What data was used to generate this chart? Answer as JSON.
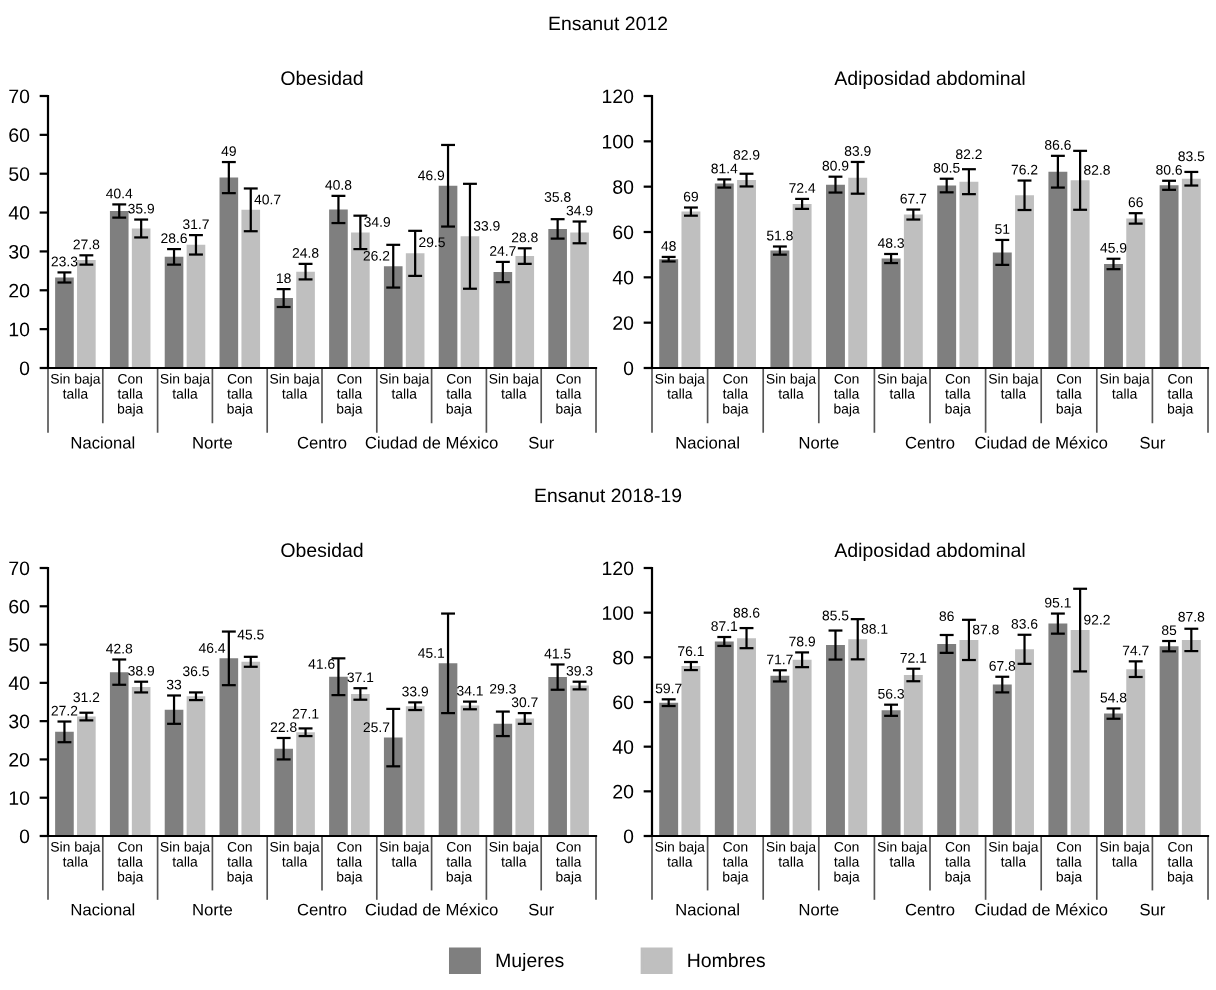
{
  "chart_data": [
    {
      "type": "bar",
      "title": "Obesidad",
      "annotations": [
        "Ensanut 2012",
        "Nacional",
        "Norte",
        "Centro",
        "Ciudad de México",
        "Sur"
      ],
      "categories": [
        "Sin baja\ntalla",
        "Con\ntalla\nbaja",
        "Sin baja\ntalla",
        "Con\ntalla\nbaja",
        "Sin baja\ntalla",
        "Con\ntalla\nbaja",
        "Sin baja\ntalla",
        "Con\ntalla\nbaja",
        "Sin baja\ntalla",
        "Con\ntalla\nbaja"
      ],
      "series": [
        {
          "name": "Mujeres",
          "color": "#7f7f7f",
          "values": [
            23.3,
            40.4,
            28.6,
            49,
            18,
            40.8,
            26.2,
            46.9,
            24.7,
            35.8
          ],
          "errors": [
            1.3,
            1.7,
            2.0,
            4,
            2.3,
            3.5,
            5.5,
            10.5,
            2.6,
            2.5
          ]
        },
        {
          "name": "Hombres",
          "color": "#bfbfbf",
          "values": [
            27.8,
            35.9,
            31.7,
            40.7,
            24.8,
            34.9,
            29.5,
            33.9,
            28.8,
            34.9
          ],
          "errors": [
            1.2,
            2.3,
            2.5,
            5.5,
            2,
            4.3,
            5.8,
            13.5,
            2,
            2.8
          ]
        }
      ],
      "ylim": [
        0,
        70
      ],
      "yticks": [
        0,
        10,
        20,
        30,
        40,
        50,
        60,
        70
      ],
      "data_labels": true,
      "grid": false,
      "legend": "bottom"
    },
    {
      "type": "bar",
      "title": "Adiposidad abdominal",
      "annotations": [
        "Nacional",
        "Norte",
        "Centro",
        "Ciudad de México",
        "Sur"
      ],
      "categories": [
        "Sin baja\ntalla",
        "Con\ntalla\nbaja",
        "Sin baja\ntalla",
        "Con\ntalla\nbaja",
        "Sin baja\ntalla",
        "Con\ntalla\nbaja",
        "Sin baja\ntalla",
        "Con\ntalla\nbaja",
        "Sin baja\ntalla",
        "Con\ntalla\nbaja"
      ],
      "series": [
        {
          "name": "Mujeres",
          "color": "#7f7f7f",
          "values": [
            48,
            81.4,
            51.8,
            80.9,
            48.3,
            80.5,
            51,
            86.6,
            45.9,
            80.6
          ],
          "errors": [
            1,
            1.8,
            1.8,
            3.5,
            2,
            3,
            5.5,
            7,
            2.3,
            2
          ]
        },
        {
          "name": "Hombres",
          "color": "#bfbfbf",
          "values": [
            69,
            82.9,
            72.4,
            83.9,
            67.7,
            82.2,
            76.2,
            82.8,
            66,
            83.5
          ],
          "errors": [
            1.8,
            2.8,
            2.2,
            7,
            2.2,
            5.5,
            6.5,
            13,
            2.3,
            3
          ]
        }
      ],
      "ylim": [
        0,
        120
      ],
      "yticks": [
        0,
        20,
        40,
        60,
        80,
        100,
        120
      ],
      "data_labels": true,
      "grid": false,
      "legend": "bottom"
    },
    {
      "type": "bar",
      "title": "Obesidad",
      "annotations": [
        "Ensanut 2018-19",
        "Nacional",
        "Norte",
        "Centro",
        "Ciudad de México",
        "Sur"
      ],
      "categories": [
        "Sin baja\ntalla",
        "Con\ntalla\nbaja",
        "Sin baja\ntalla",
        "Con\ntalla\nbaja",
        "Sin baja\ntalla",
        "Con\ntalla\nbaja",
        "Sin baja\ntalla",
        "Con\ntalla\nbaja",
        "Sin baja\ntalla",
        "Con\ntalla\nbaja"
      ],
      "series": [
        {
          "name": "Mujeres",
          "color": "#7f7f7f",
          "values": [
            27.2,
            42.8,
            33,
            46.4,
            22.8,
            41.6,
            25.7,
            45.1,
            29.3,
            41.5
          ],
          "errors": [
            2.7,
            3.3,
            3.7,
            7,
            2.8,
            4.8,
            7.5,
            13,
            3.2,
            3.3
          ]
        },
        {
          "name": "Hombres",
          "color": "#bfbfbf",
          "values": [
            31.2,
            38.9,
            36.5,
            45.5,
            27.1,
            37.1,
            33.9,
            34.1,
            30.7,
            39.3
          ],
          "errors": [
            1,
            1.4,
            1,
            1.3,
            1,
            1.5,
            1,
            1,
            1.4,
            1
          ]
        }
      ],
      "ylim": [
        0,
        70
      ],
      "yticks": [
        0,
        10,
        20,
        30,
        40,
        50,
        60,
        70
      ],
      "data_labels": true,
      "grid": false,
      "legend": "bottom"
    },
    {
      "type": "bar",
      "title": "Adiposidad abdominal",
      "annotations": [
        "Nacional",
        "Norte",
        "Centro",
        "Ciudad de México",
        "Sur"
      ],
      "categories": [
        "Sin baja\ntalla",
        "Con\ntalla\nbaja",
        "Sin baja\ntalla",
        "Con\ntalla\nbaja",
        "Sin baja\ntalla",
        "Con\ntalla\nbaja",
        "Sin baja\ntalla",
        "Con\ntalla\nbaja",
        "Sin baja\ntalla",
        "Con\ntalla\nbaja"
      ],
      "series": [
        {
          "name": "Mujeres",
          "color": "#7f7f7f",
          "values": [
            59.7,
            87.1,
            71.7,
            85.5,
            56.3,
            86,
            67.8,
            95.1,
            54.8,
            85
          ],
          "errors": [
            1.5,
            2,
            2.5,
            6.5,
            2.5,
            4,
            3.5,
            4.5,
            2.3,
            2.3
          ]
        },
        {
          "name": "Hombres",
          "color": "#bfbfbf",
          "values": [
            76.1,
            88.6,
            78.9,
            88.1,
            72.1,
            87.8,
            83.6,
            92.2,
            74.7,
            87.8
          ],
          "errors": [
            1.8,
            4.5,
            3.3,
            9,
            2.8,
            9,
            6.5,
            18.5,
            3.5,
            5
          ]
        }
      ],
      "ylim": [
        0,
        120
      ],
      "yticks": [
        0,
        20,
        40,
        60,
        80,
        100,
        120
      ],
      "data_labels": true,
      "grid": false,
      "legend": "bottom"
    }
  ]
}
